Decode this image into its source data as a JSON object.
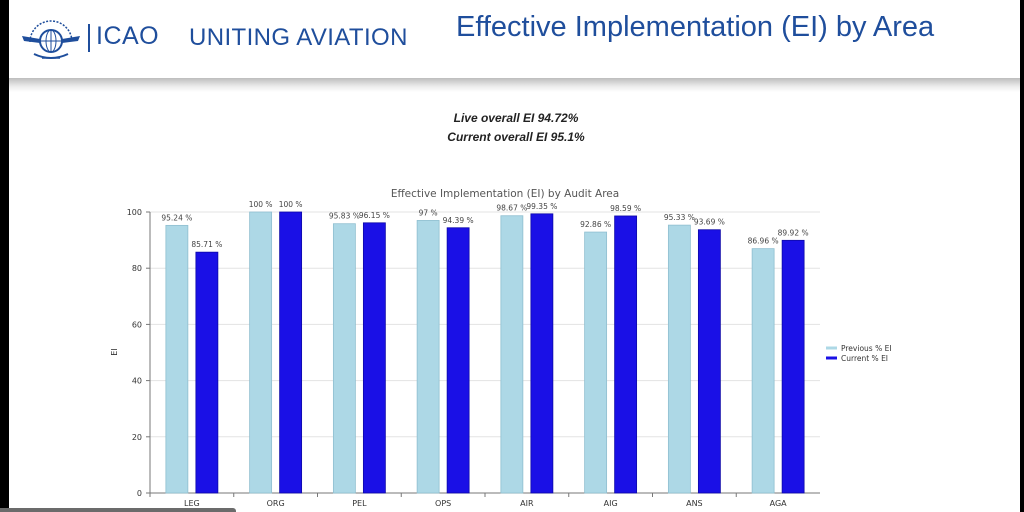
{
  "header": {
    "logo_text": "ICAO",
    "logo_emblem": "icao-emblem-icon",
    "tagline": "UNITING AVIATION",
    "title": "Effective Implementation (EI) by Area"
  },
  "summary": {
    "live": "Live overall EI 94.72%",
    "current": "Current overall EI 95.1%"
  },
  "colors": {
    "brand": "#1f4e9c",
    "previous": "#add8e6",
    "current": "#1a10e6"
  },
  "chart_data": {
    "type": "bar",
    "title": "Effective Implementation (EI) by Audit Area",
    "xlabel": "",
    "ylabel": "EI",
    "ylim": [
      0,
      100
    ],
    "yticks": [
      "0",
      "20",
      "40",
      "60",
      "80",
      "100"
    ],
    "grid": true,
    "legend_position": "right",
    "categories": [
      "LEG",
      "ORG",
      "PEL",
      "OPS",
      "AIR",
      "AIG",
      "ANS",
      "AGA"
    ],
    "series": [
      {
        "name": "Previous % EI",
        "values": [
          95.24,
          100,
          95.83,
          97,
          98.67,
          92.86,
          95.33,
          86.96
        ],
        "labels": [
          "95.24 %",
          "100 %",
          "95.83 %",
          "97 %",
          "98.67 %",
          "92.86 %",
          "95.33 %",
          "86.96 %"
        ]
      },
      {
        "name": "Current % EI",
        "values": [
          85.71,
          100,
          96.15,
          94.39,
          99.35,
          98.59,
          93.69,
          89.92
        ],
        "labels": [
          "85.71 %",
          "100 %",
          "96.15 %",
          "94.39 %",
          "99.35 %",
          "98.59 %",
          "93.69 %",
          "89.92 %"
        ]
      }
    ]
  }
}
